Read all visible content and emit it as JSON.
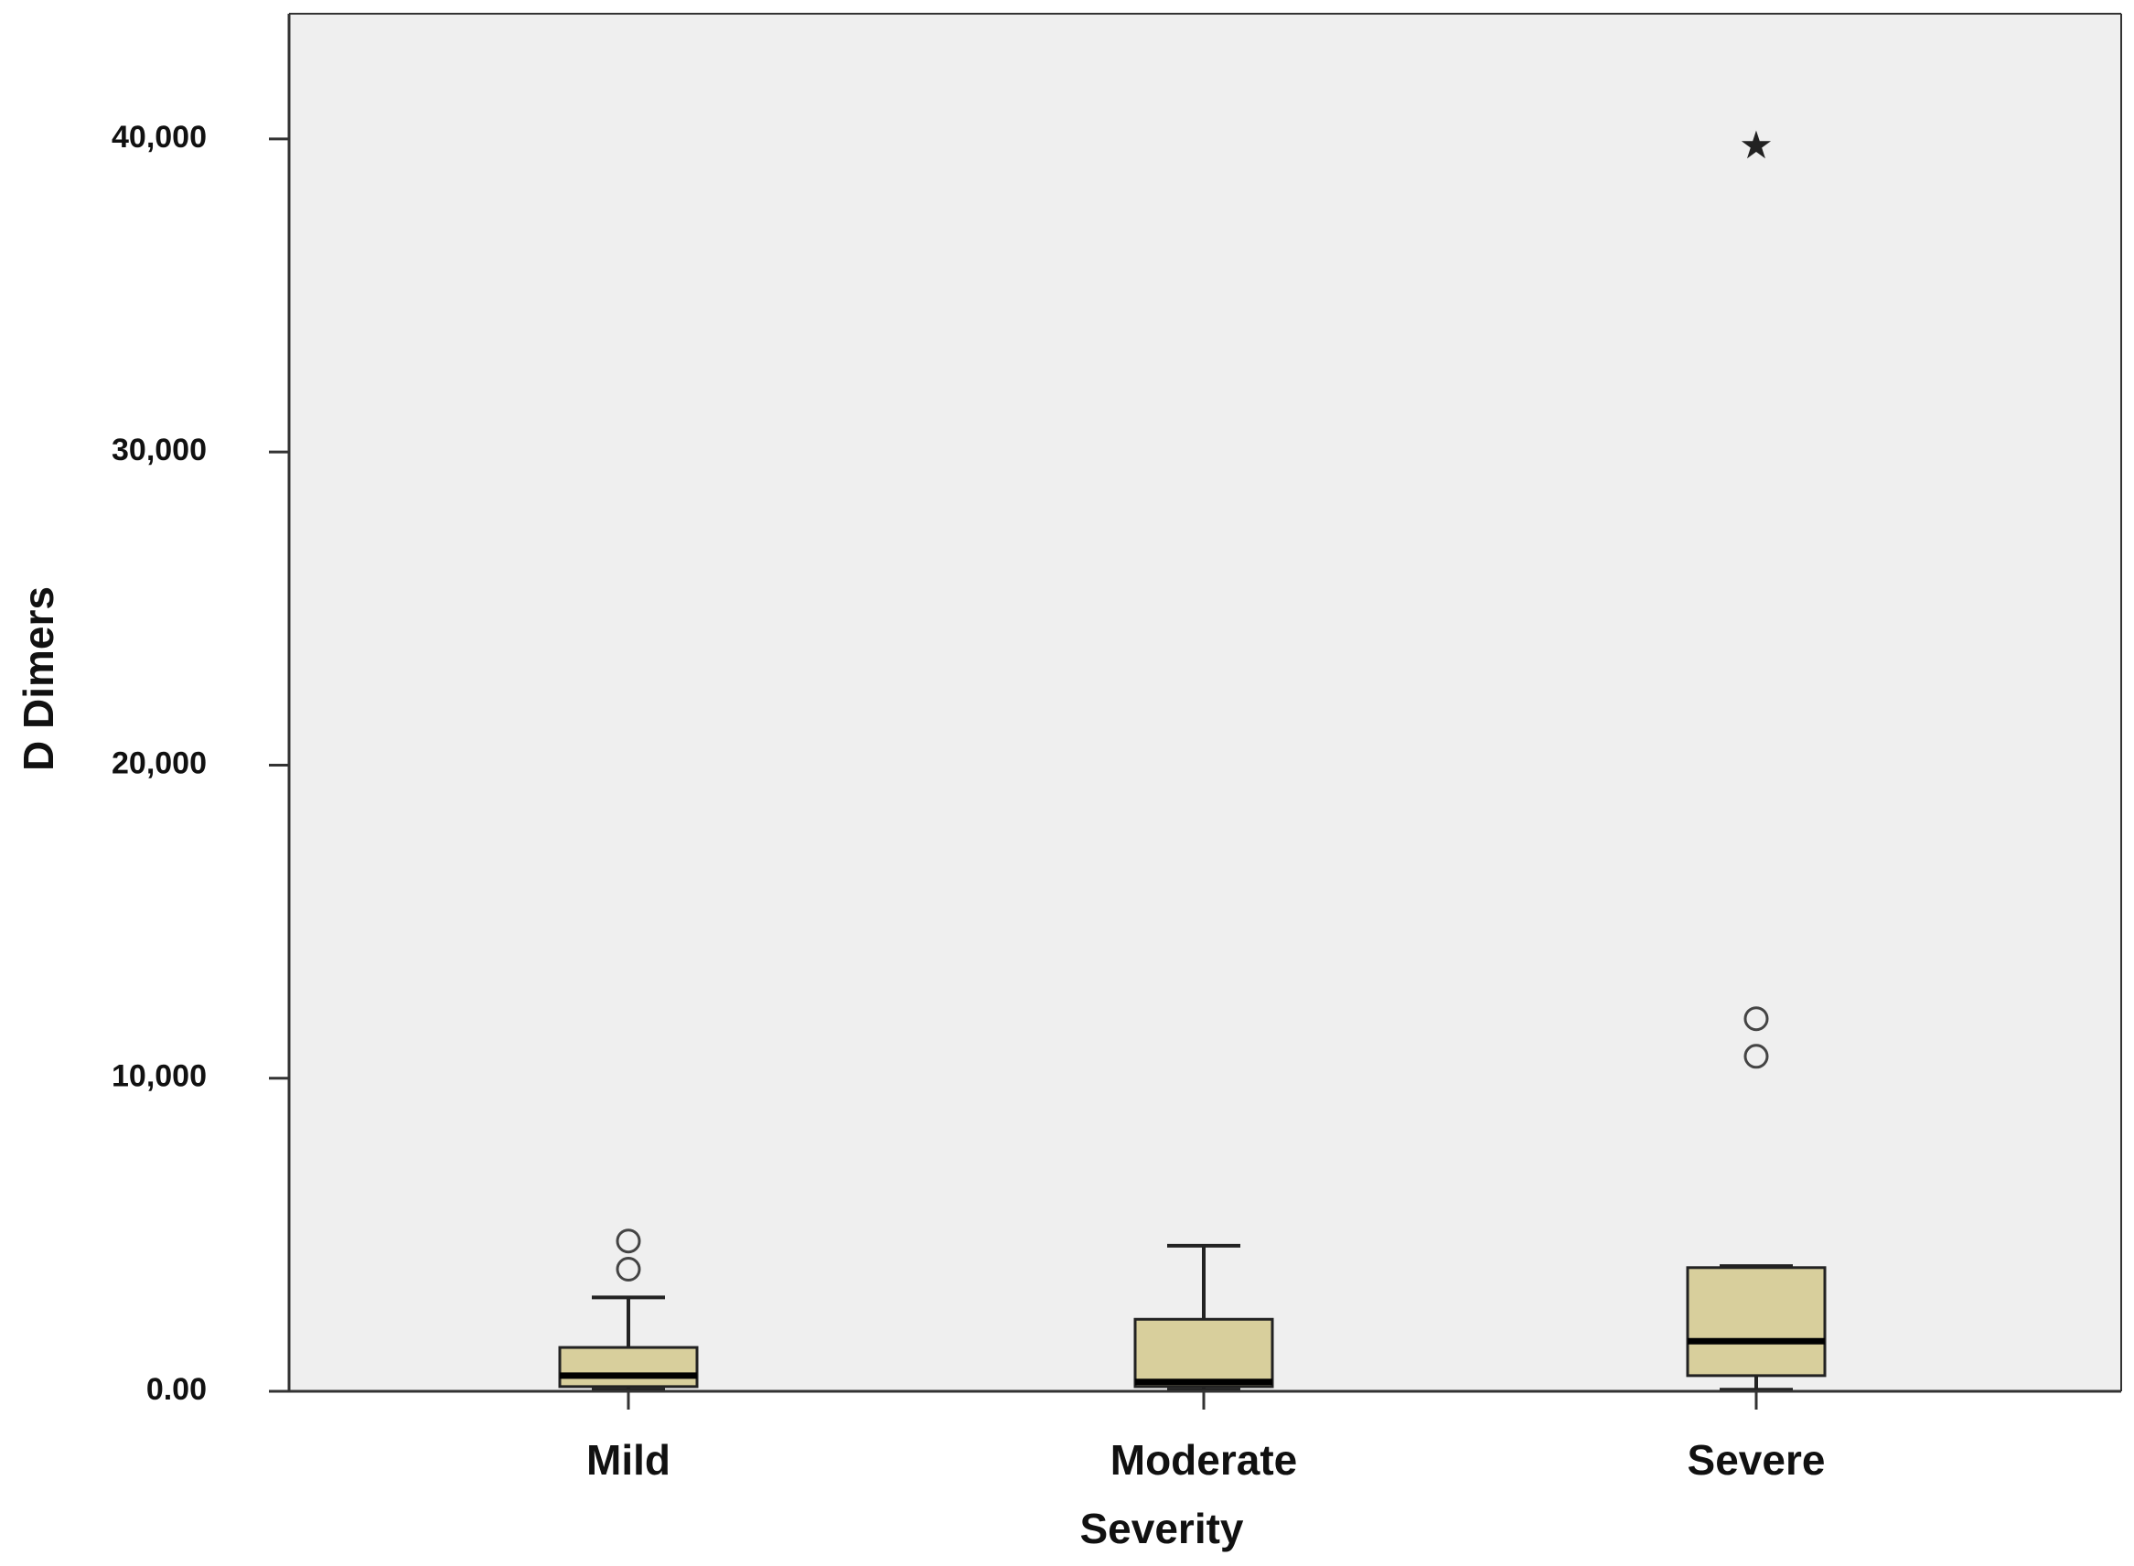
{
  "chart_data": {
    "type": "boxplot",
    "xlabel": "Severity",
    "ylabel": "D Dimers",
    "ylim": [
      0,
      44000
    ],
    "yticks": [
      {
        "value": 0,
        "label": "0.00"
      },
      {
        "value": 10000,
        "label": "10,000"
      },
      {
        "value": 20000,
        "label": "20,000"
      },
      {
        "value": 30000,
        "label": "30,000"
      },
      {
        "value": 40000,
        "label": "40,000"
      }
    ],
    "grid": false,
    "background": "#efefef",
    "box_color": "#d8cf9c",
    "categories": [
      "Mild",
      "Moderate",
      "Severe"
    ],
    "boxes": [
      {
        "category": "Mild",
        "whisker_low": 50,
        "q1": 150,
        "median": 500,
        "q3": 1400,
        "whisker_high": 3000,
        "outliers": [
          {
            "value": 3900,
            "marker": "circle"
          },
          {
            "value": 4800,
            "marker": "circle"
          }
        ]
      },
      {
        "category": "Moderate",
        "whisker_low": 50,
        "q1": 150,
        "median": 300,
        "q3": 2300,
        "whisker_high": 4650,
        "outliers": []
      },
      {
        "category": "Severe",
        "whisker_low": 50,
        "q1": 500,
        "median": 1600,
        "q3": 3950,
        "whisker_high": 4000,
        "outliers": [
          {
            "value": 10700,
            "marker": "circle"
          },
          {
            "value": 11900,
            "marker": "circle"
          },
          {
            "value": 39800,
            "marker": "star"
          }
        ]
      }
    ]
  }
}
